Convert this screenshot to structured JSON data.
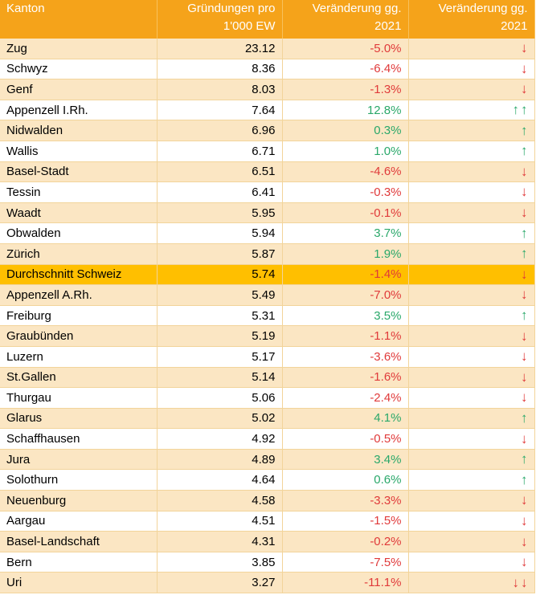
{
  "header": {
    "kanton": "Kanton",
    "gruendungen": "Gründungen pro 1'000 EW",
    "veraenderung": "Veränderung gg. 2021",
    "trend": "Veränderung gg. 2021"
  },
  "colors": {
    "header": "#f5a31a",
    "highlight": "#ffbf00",
    "band": "#fbe6c3",
    "negative": "#e03a3a",
    "positive": "#2aa86a"
  },
  "rows": [
    {
      "kanton": "Zug",
      "value": "23.12",
      "change": "-5.0%",
      "dir": "down",
      "arrow": "↓"
    },
    {
      "kanton": "Schwyz",
      "value": "8.36",
      "change": "-6.4%",
      "dir": "down",
      "arrow": "↓"
    },
    {
      "kanton": "Genf",
      "value": "8.03",
      "change": "-1.3%",
      "dir": "down",
      "arrow": "↓"
    },
    {
      "kanton": "Appenzell I.Rh.",
      "value": "7.64",
      "change": "12.8%",
      "dir": "up",
      "arrow": "↑↑"
    },
    {
      "kanton": "Nidwalden",
      "value": "6.96",
      "change": "0.3%",
      "dir": "up",
      "arrow": "↑"
    },
    {
      "kanton": "Wallis",
      "value": "6.71",
      "change": "1.0%",
      "dir": "up",
      "arrow": "↑"
    },
    {
      "kanton": "Basel-Stadt",
      "value": "6.51",
      "change": "-4.6%",
      "dir": "down",
      "arrow": "↓"
    },
    {
      "kanton": "Tessin",
      "value": "6.41",
      "change": "-0.3%",
      "dir": "down",
      "arrow": "↓"
    },
    {
      "kanton": "Waadt",
      "value": "5.95",
      "change": "-0.1%",
      "dir": "down",
      "arrow": "↓"
    },
    {
      "kanton": "Obwalden",
      "value": "5.94",
      "change": "3.7%",
      "dir": "up",
      "arrow": "↑"
    },
    {
      "kanton": "Zürich",
      "value": "5.87",
      "change": "1.9%",
      "dir": "up",
      "arrow": "↑"
    },
    {
      "kanton": "Durchschnitt Schweiz",
      "value": "5.74",
      "change": "-1.4%",
      "dir": "down",
      "arrow": "↓",
      "highlight": true
    },
    {
      "kanton": "Appenzell A.Rh.",
      "value": "5.49",
      "change": "-7.0%",
      "dir": "down",
      "arrow": "↓"
    },
    {
      "kanton": "Freiburg",
      "value": "5.31",
      "change": "3.5%",
      "dir": "up",
      "arrow": "↑"
    },
    {
      "kanton": "Graubünden",
      "value": "5.19",
      "change": "-1.1%",
      "dir": "down",
      "arrow": "↓"
    },
    {
      "kanton": "Luzern",
      "value": "5.17",
      "change": "-3.6%",
      "dir": "down",
      "arrow": "↓"
    },
    {
      "kanton": "St.Gallen",
      "value": "5.14",
      "change": "-1.6%",
      "dir": "down",
      "arrow": "↓"
    },
    {
      "kanton": "Thurgau",
      "value": "5.06",
      "change": "-2.4%",
      "dir": "down",
      "arrow": "↓"
    },
    {
      "kanton": "Glarus",
      "value": "5.02",
      "change": "4.1%",
      "dir": "up",
      "arrow": "↑"
    },
    {
      "kanton": "Schaffhausen",
      "value": "4.92",
      "change": "-0.5%",
      "dir": "down",
      "arrow": "↓"
    },
    {
      "kanton": "Jura",
      "value": "4.89",
      "change": "3.4%",
      "dir": "up",
      "arrow": "↑"
    },
    {
      "kanton": "Solothurn",
      "value": "4.64",
      "change": "0.6%",
      "dir": "up",
      "arrow": "↑"
    },
    {
      "kanton": "Neuenburg",
      "value": "4.58",
      "change": "-3.3%",
      "dir": "down",
      "arrow": "↓"
    },
    {
      "kanton": "Aargau",
      "value": "4.51",
      "change": "-1.5%",
      "dir": "down",
      "arrow": "↓"
    },
    {
      "kanton": "Basel-Landschaft",
      "value": "4.31",
      "change": "-0.2%",
      "dir": "down",
      "arrow": "↓"
    },
    {
      "kanton": "Bern",
      "value": "3.85",
      "change": "-7.5%",
      "dir": "down",
      "arrow": "↓"
    },
    {
      "kanton": "Uri",
      "value": "3.27",
      "change": "-11.1%",
      "dir": "down",
      "arrow": "↓↓"
    }
  ]
}
